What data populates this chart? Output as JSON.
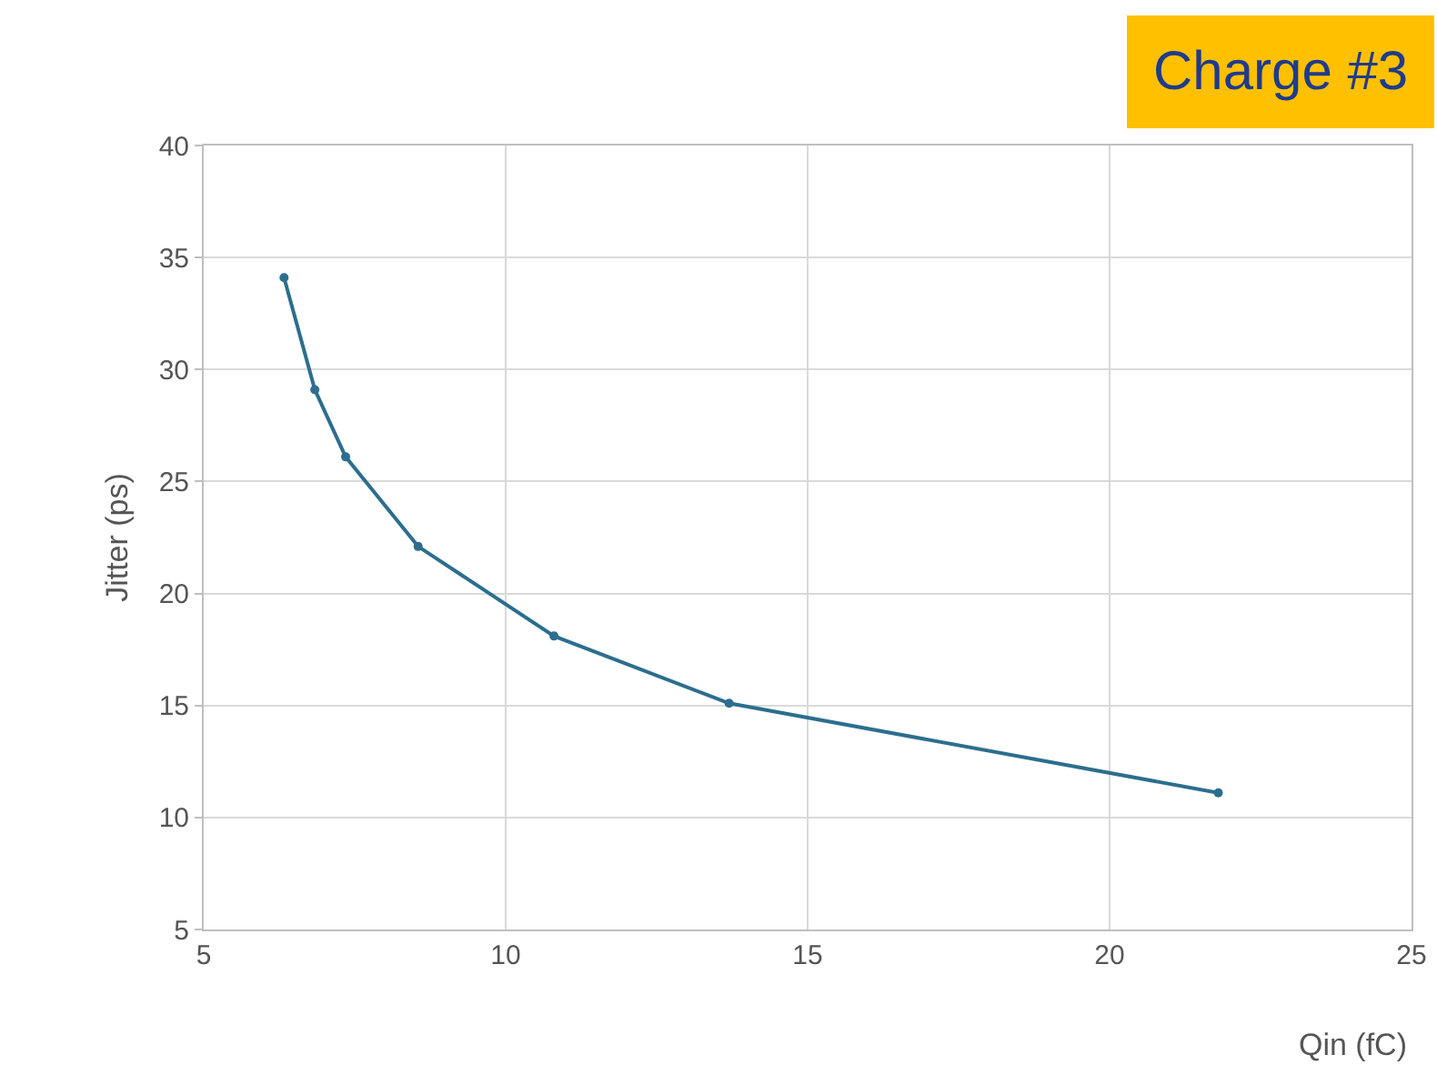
{
  "chart_data": {
    "type": "line",
    "title": "Charge #3",
    "xlabel": "Qin (fC)",
    "ylabel": "Jitter (ps)",
    "x": [
      6.33,
      6.84,
      7.35,
      8.55,
      10.8,
      13.7,
      21.8
    ],
    "series": [
      {
        "color": "#2c6e8e",
        "values": [
          34.1,
          29.1,
          26.1,
          22.1,
          18.1,
          15.1,
          11.1
        ]
      }
    ],
    "xlim": [
      5,
      25
    ],
    "xticks": [
      5,
      10,
      15,
      20,
      25
    ],
    "ylim": [
      5,
      40
    ],
    "yticks": [
      5,
      10,
      15,
      20,
      25,
      30,
      35,
      40
    ],
    "grid": true,
    "marker": "circle",
    "line_style": "solid"
  }
}
